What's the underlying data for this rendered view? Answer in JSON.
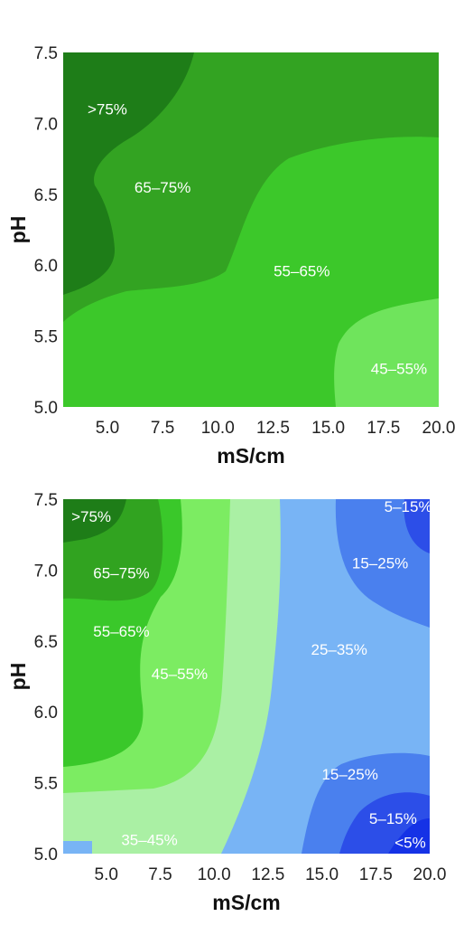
{
  "chart_data": [
    {
      "type": "heatmap",
      "xlabel": "mS/cm",
      "ylabel": "pH",
      "xlim": [
        3,
        20
      ],
      "ylim": [
        5.0,
        7.5
      ],
      "x_ticks": [
        "5.0",
        "7.5",
        "10.0",
        "12.5",
        "15.0",
        "17.5",
        "20.0"
      ],
      "y_ticks": [
        "5.0",
        "5.5",
        "6.0",
        "6.5",
        "7.0",
        "7.5"
      ],
      "region_labels": [
        {
          "text": ">75%",
          "x": 5.0,
          "y": 7.1,
          "color": "#1e7d18"
        },
        {
          "text": "65–75%",
          "x": 7.5,
          "y": 6.55,
          "color": "#33a322"
        },
        {
          "text": "55–65%",
          "x": 13.8,
          "y": 5.96,
          "color": "#3cc82a"
        },
        {
          "text": "45–55%",
          "x": 18.2,
          "y": 5.27,
          "color": "#6fe45c"
        }
      ]
    },
    {
      "type": "heatmap",
      "xlabel": "mS/cm",
      "ylabel": "pH",
      "xlim": [
        3,
        20
      ],
      "ylim": [
        5.0,
        7.5
      ],
      "x_ticks": [
        "5.0",
        "7.5",
        "10.0",
        "12.5",
        "15.0",
        "17.5",
        "20.0"
      ],
      "y_ticks": [
        "5.0",
        "5.5",
        "6.0",
        "6.5",
        "7.0",
        "7.5"
      ],
      "region_labels": [
        {
          "text": ">75%",
          "x": 4.3,
          "y": 7.38,
          "color": "#1e7d18"
        },
        {
          "text": "65–75%",
          "x": 5.7,
          "y": 6.98,
          "color": "#31a320"
        },
        {
          "text": "55–65%",
          "x": 5.7,
          "y": 6.57,
          "color": "#3ac82a"
        },
        {
          "text": "45–55%",
          "x": 8.4,
          "y": 6.27,
          "color": "#7cec62"
        },
        {
          "text": "35–45%",
          "x": 7.0,
          "y": 5.1,
          "color": "#aaf0a4"
        },
        {
          "text": "25–35%",
          "x": 15.8,
          "y": 6.44,
          "color": "#78b4f5"
        },
        {
          "text": "15–25%",
          "x": 17.7,
          "y": 7.05,
          "color": "#4a80ee"
        },
        {
          "text": "5–15%",
          "x": 19.0,
          "y": 7.45,
          "color": "#2c4ee8"
        },
        {
          "text": "15–25%",
          "x": 16.3,
          "y": 5.56,
          "color": "#4a80ee"
        },
        {
          "text": "5–15%",
          "x": 18.3,
          "y": 5.25,
          "color": "#2c4ee8"
        },
        {
          "text": "<5%",
          "x": 19.1,
          "y": 5.08,
          "color": "#1532e6"
        }
      ]
    }
  ]
}
